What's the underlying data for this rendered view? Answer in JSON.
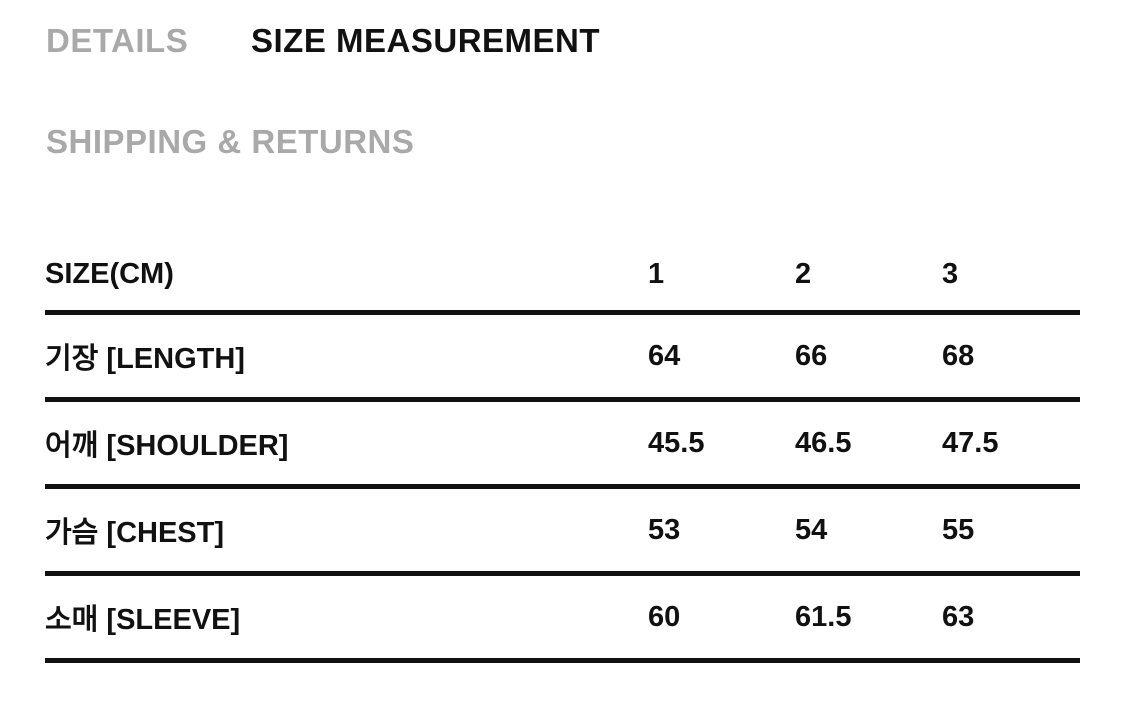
{
  "tabs": [
    {
      "label": "DETAILS",
      "active": false
    },
    {
      "label": "SIZE MEASUREMENT",
      "active": true
    },
    {
      "label": "SHIPPING & RETURNS",
      "active": false
    }
  ],
  "table": {
    "headers": [
      "SIZE(CM)",
      "1",
      "2",
      "3"
    ],
    "rows": [
      [
        "기장 [LENGTH]",
        "64",
        "66",
        "68"
      ],
      [
        "어깨 [SHOULDER]",
        "45.5",
        "46.5",
        "47.5"
      ],
      [
        "가슴 [CHEST]",
        "53",
        "54",
        "55"
      ],
      [
        "소매 [SLEEVE]",
        "60",
        "61.5",
        "63"
      ]
    ]
  }
}
